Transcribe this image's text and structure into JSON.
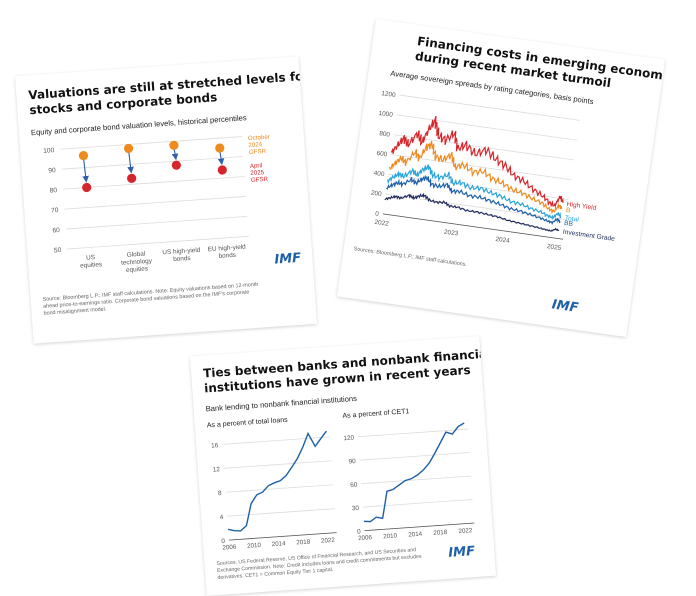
{
  "cards": [
    {
      "title_lines": [
        "Valuations are still at stretched levels for both",
        "stocks and corporate bonds"
      ],
      "subtitle": "Equity and corporate bond valuation levels, historical percentiles",
      "source_lines": [
        "Source: Bloomberg L.P.; IMF staff calculations. Note: Equity valuations based on 12-month",
        "ahead price-to-earnings ratio. Corporate bond valuations based on the IMF's corporate",
        "bond misalignment model."
      ],
      "logo": "IMF"
    },
    {
      "title_lines": [
        "Financing costs in emerging economies surged",
        "during recent market turmoil"
      ],
      "subtitle": "Average sovereign spreads by rating categories, basis points",
      "source_lines": [
        "Sources: Bloomberg L.P.; IMF staff calculations."
      ],
      "logo": "IMF"
    },
    {
      "title_lines": [
        "Ties between banks and nonbank financial",
        "institutions have grown in recent years"
      ],
      "subtitle": "Bank lending to nonbank financial institutions",
      "source_lines": [
        "Sources: US Federal Reserve, US Office of Financial Research, and US Securities and",
        "Exchange Commission. Note: Credit includes loans and credit commitments but excludes",
        "derivatives. CET1 = Common Equity Tier 1 capital."
      ],
      "logo": "IMF"
    }
  ],
  "chart_data": [
    {
      "type": "scatter",
      "title": "Valuations are still at stretched levels for both stocks and corporate bonds",
      "subtitle": "Equity and corporate bond valuation levels, historical percentiles",
      "categories": [
        [
          "US",
          "equities"
        ],
        [
          "Global",
          "technology",
          "equities"
        ],
        [
          "US high-yield",
          "bonds"
        ],
        [
          "EU high-yield",
          "bonds"
        ]
      ],
      "yticks": [
        "100",
        "90",
        "80",
        "70",
        "60",
        "50"
      ],
      "ylim": [
        50,
        100
      ],
      "series": [
        {
          "name": "October 2024 GFSR",
          "name_lines": [
            "October",
            "2024",
            "GFSR"
          ],
          "color": "#ef8a1e",
          "values": [
            96,
            98,
            98,
            95
          ]
        },
        {
          "name": "April 2025 GFSR",
          "name_lines": [
            "April",
            "2025",
            "GFSR"
          ],
          "color": "#d6262c",
          "values": [
            80,
            83,
            88,
            84
          ]
        }
      ],
      "arrow_color": "#2e5fa8"
    },
    {
      "type": "line",
      "title": "Financing costs in emerging economies surged during recent market turmoil",
      "subtitle": "Average sovereign spreads by rating categories, basis points",
      "yticks": [
        "1200",
        "1000",
        "800",
        "600",
        "400",
        "200",
        "0"
      ],
      "ylim": [
        0,
        1200
      ],
      "xticks": [
        "2022",
        "2023",
        "2024",
        "2025"
      ],
      "xlim": [
        2022,
        2025.5
      ],
      "series": [
        {
          "name": "High Yield",
          "color": "#d6262c",
          "x": [
            2022.0,
            2022.1,
            2022.2,
            2022.3,
            2022.45,
            2022.55,
            2022.65,
            2022.75,
            2022.85,
            2023.0,
            2023.15,
            2023.25,
            2023.4,
            2023.6,
            2023.8,
            2024.0,
            2024.2,
            2024.4,
            2024.6,
            2024.8,
            2025.0,
            2025.15,
            2025.25,
            2025.33,
            2025.4
          ],
          "values": [
            620,
            700,
            780,
            720,
            850,
            760,
            900,
            1000,
            850,
            820,
            900,
            750,
            800,
            720,
            780,
            700,
            650,
            560,
            520,
            450,
            400,
            340,
            320,
            420,
            360
          ]
        },
        {
          "name": "B",
          "color": "#ef8a1e",
          "x": [
            2022.0,
            2022.1,
            2022.2,
            2022.3,
            2022.45,
            2022.55,
            2022.65,
            2022.75,
            2022.85,
            2023.0,
            2023.15,
            2023.25,
            2023.4,
            2023.6,
            2023.8,
            2024.0,
            2024.2,
            2024.4,
            2024.6,
            2024.8,
            2025.0,
            2025.15,
            2025.25,
            2025.33,
            2025.4
          ],
          "values": [
            450,
            520,
            580,
            540,
            660,
            600,
            720,
            760,
            640,
            620,
            680,
            560,
            600,
            540,
            560,
            500,
            470,
            420,
            400,
            360,
            330,
            280,
            260,
            330,
            300
          ]
        },
        {
          "name": "Total",
          "color": "#29a4d9",
          "x": [
            2022.0,
            2022.1,
            2022.2,
            2022.3,
            2022.45,
            2022.55,
            2022.65,
            2022.75,
            2022.85,
            2023.0,
            2023.15,
            2023.25,
            2023.4,
            2023.6,
            2023.8,
            2024.0,
            2024.2,
            2024.4,
            2024.6,
            2024.8,
            2025.0,
            2025.15,
            2025.25,
            2025.33,
            2025.4
          ],
          "values": [
            330,
            380,
            420,
            400,
            470,
            430,
            500,
            530,
            450,
            440,
            480,
            400,
            420,
            380,
            390,
            360,
            340,
            300,
            290,
            260,
            240,
            210,
            200,
            250,
            220
          ]
        },
        {
          "name": "BB",
          "color": "#1d5fa8",
          "x": [
            2022.0,
            2022.1,
            2022.2,
            2022.3,
            2022.45,
            2022.55,
            2022.65,
            2022.75,
            2022.85,
            2023.0,
            2023.15,
            2023.25,
            2023.4,
            2023.6,
            2023.8,
            2024.0,
            2024.2,
            2024.4,
            2024.6,
            2024.8,
            2025.0,
            2025.15,
            2025.25,
            2025.33,
            2025.4
          ],
          "values": [
            260,
            300,
            330,
            320,
            380,
            350,
            400,
            420,
            360,
            350,
            380,
            320,
            330,
            300,
            300,
            280,
            260,
            230,
            220,
            200,
            180,
            160,
            150,
            190,
            170
          ]
        },
        {
          "name": "Investment Grade",
          "color": "#1f2a5c",
          "x": [
            2022.0,
            2022.1,
            2022.2,
            2022.3,
            2022.45,
            2022.55,
            2022.65,
            2022.75,
            2022.85,
            2023.0,
            2023.15,
            2023.25,
            2023.4,
            2023.6,
            2023.8,
            2024.0,
            2024.2,
            2024.4,
            2024.6,
            2024.8,
            2025.0,
            2025.15,
            2025.25,
            2025.33,
            2025.4
          ],
          "values": [
            150,
            170,
            190,
            180,
            220,
            200,
            230,
            240,
            200,
            190,
            200,
            170,
            170,
            150,
            150,
            140,
            130,
            110,
            100,
            90,
            80,
            70,
            65,
            90,
            80
          ]
        }
      ]
    },
    {
      "type": "line",
      "title": "As a percent of total loans",
      "xticks": [
        "2006",
        "2010",
        "2014",
        "2018",
        "2022"
      ],
      "xlim": [
        2006,
        2023.5
      ],
      "yticks": [
        "16",
        "12",
        "8",
        "4",
        "0"
      ],
      "ylim": [
        0,
        17
      ],
      "series": [
        {
          "name": "",
          "color": "#1d5fa8",
          "x": [
            2006,
            2007,
            2008,
            2009,
            2010,
            2011,
            2012,
            2013,
            2014,
            2015,
            2016,
            2017,
            2018,
            2019,
            2020,
            2021,
            2022,
            2023
          ],
          "values": [
            1.8,
            1.5,
            1.4,
            2.2,
            5.8,
            7.2,
            7.6,
            8.6,
            9.0,
            9.3,
            10.1,
            11.4,
            12.8,
            14.6,
            16.8,
            14.6,
            15.8,
            17.0
          ]
        }
      ]
    },
    {
      "type": "line",
      "title": "As a percent of CET1",
      "xticks": [
        "2006",
        "2010",
        "2014",
        "2018",
        "2022"
      ],
      "xlim": [
        2006,
        2023.5
      ],
      "yticks": [
        "120",
        "90",
        "60",
        "30",
        "0"
      ],
      "ylim": [
        0,
        130
      ],
      "series": [
        {
          "name": "",
          "color": "#1d5fa8",
          "x": [
            2006,
            2007,
            2008,
            2009,
            2010,
            2011,
            2012,
            2013,
            2014,
            2015,
            2016,
            2017,
            2018,
            2019,
            2020,
            2021,
            2022,
            2023
          ],
          "values": [
            12,
            11,
            16,
            14,
            48,
            50,
            55,
            60,
            62,
            66,
            72,
            80,
            92,
            105,
            118,
            115,
            124,
            128
          ]
        }
      ]
    }
  ]
}
